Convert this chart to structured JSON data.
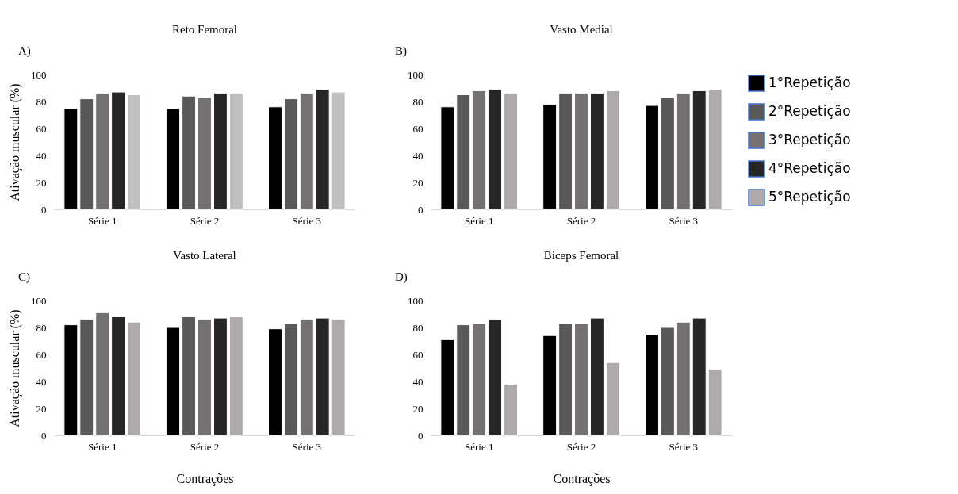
{
  "chart_data": [
    {
      "type": "bar",
      "title": "Reto Femoral",
      "ylabel": "Ativação muscular (%)",
      "annotations": [
        "A)"
      ],
      "categories": [
        "Série 1",
        "Série 2",
        "Série 3"
      ],
      "ylim": [
        0,
        100
      ],
      "yticks": [
        0,
        20,
        40,
        60,
        80,
        100
      ],
      "grid": false,
      "legend": false,
      "series": [
        {
          "color": "#000000",
          "values": [
            75,
            75,
            76
          ]
        },
        {
          "color": "#595959",
          "values": [
            82,
            84,
            82
          ]
        },
        {
          "color": "#767171",
          "values": [
            86,
            83,
            86
          ]
        },
        {
          "color": "#262626",
          "values": [
            87,
            86,
            89
          ]
        },
        {
          "color": "#bfbfbf",
          "values": [
            85,
            86,
            87
          ]
        }
      ]
    },
    {
      "type": "bar",
      "title": "Vasto Medial",
      "annotations": [
        "B)"
      ],
      "categories": [
        "Série 1",
        "Série 2",
        "Série 3"
      ],
      "ylim": [
        0,
        100
      ],
      "yticks": [
        0,
        20,
        40,
        60,
        80,
        100
      ],
      "grid": false,
      "legend": "right",
      "series": [
        {
          "name": "1°Repetição",
          "color": "#000000",
          "values": [
            76,
            78,
            77
          ]
        },
        {
          "name": "2°Repetição",
          "color": "#595959",
          "values": [
            85,
            86,
            83
          ]
        },
        {
          "name": "3°Repetição",
          "color": "#767171",
          "values": [
            88,
            86,
            86
          ]
        },
        {
          "name": "4°Repetição",
          "color": "#262626",
          "values": [
            89,
            86,
            88
          ]
        },
        {
          "name": "5°Repetição",
          "color": "#aeaaaa",
          "values": [
            86,
            88,
            89
          ]
        }
      ]
    },
    {
      "type": "bar",
      "title": "Vasto Lateral",
      "ylabel": "Ativação muscular (%)",
      "xlabel": "Contrações",
      "annotations": [
        "C)"
      ],
      "categories": [
        "Série 1",
        "Série 2",
        "Série 3"
      ],
      "ylim": [
        0,
        100
      ],
      "yticks": [
        0,
        20,
        40,
        60,
        80,
        100
      ],
      "grid": false,
      "legend": false,
      "series": [
        {
          "color": "#000000",
          "values": [
            82,
            80,
            79
          ]
        },
        {
          "color": "#595959",
          "values": [
            86,
            88,
            83
          ]
        },
        {
          "color": "#767171",
          "values": [
            91,
            86,
            86
          ]
        },
        {
          "color": "#262626",
          "values": [
            88,
            87,
            87
          ]
        },
        {
          "color": "#aeaaaa",
          "values": [
            84,
            88,
            86
          ]
        }
      ]
    },
    {
      "type": "bar",
      "title": "Biceps Femoral",
      "xlabel": "Contrações",
      "annotations": [
        "D)"
      ],
      "categories": [
        "Série 1",
        "Série 2",
        "Série 3"
      ],
      "ylim": [
        0,
        100
      ],
      "yticks": [
        0,
        20,
        40,
        60,
        80,
        100
      ],
      "grid": false,
      "legend": false,
      "series": [
        {
          "color": "#000000",
          "values": [
            71,
            74,
            75
          ]
        },
        {
          "color": "#595959",
          "values": [
            82,
            83,
            80
          ]
        },
        {
          "color": "#767171",
          "values": [
            83,
            83,
            84
          ]
        },
        {
          "color": "#262626",
          "values": [
            86,
            87,
            87
          ]
        },
        {
          "color": "#aeaaaa",
          "values": [
            38,
            54,
            49
          ]
        }
      ]
    }
  ]
}
